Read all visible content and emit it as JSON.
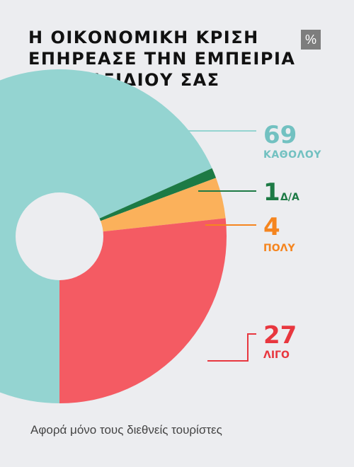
{
  "header": {
    "title_lines": [
      "Η ΟΙΚΟΝΟΜΙΚΗ ΚΡΙΣΗ",
      "ΕΠΗΡΕΑΣΕ ΤΗΝ ΕΜΠΕΙΡΙΑ",
      "ΤΟΥ ΤΑΞΙΔΙΟΥ ΣΑΣ"
    ],
    "unit_badge": "%"
  },
  "chart_data": {
    "type": "pie",
    "title": "Η ΟΙΚΟΝΟΜΙΚΗ ΚΡΙΣΗ ΕΠΗΡΕΑΣΕ ΤΗΝ ΕΜΠΕΙΡΙΑ ΤΟΥ ΤΑΞΙΔΙΟΥ ΣΑΣ",
    "unit": "%",
    "donut": true,
    "slices": [
      {
        "label": "ΚΑΘΟΛΟΥ",
        "value": 69,
        "color": "#94d4d1"
      },
      {
        "label": "Δ/Α",
        "value": 1,
        "color": "#1d7a45"
      },
      {
        "label": "ΠΟΛΥ",
        "value": 4,
        "color": "#fbb15b"
      },
      {
        "label": "ΛΙΓΟ",
        "value": 27,
        "color": "#f45b63"
      }
    ]
  },
  "footnote": "Αφορά μόνο τους διεθνείς τουρίστες"
}
